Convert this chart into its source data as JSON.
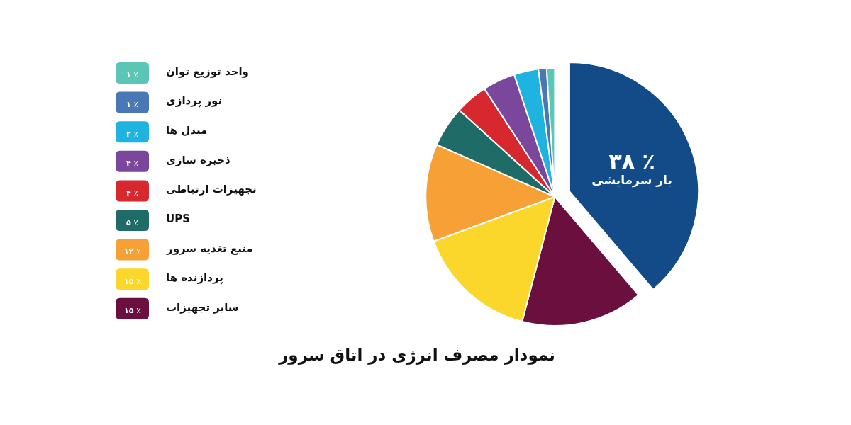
{
  "chart_data": {
    "type": "pie",
    "title": "نمودار مصرف انرژی در اتاق سرور",
    "categories": [
      "بار سرمایشی",
      "سایر تجهیزات",
      "پردازنده ها",
      "منبع تغذیه سرور",
      "UPS",
      "تجهیزات ارتباطی",
      "ذخیره سازی",
      "مبدل ها",
      "نور پردازی",
      "واحد توزیع توان"
    ],
    "values": [
      38,
      15,
      15,
      12,
      5,
      4,
      4,
      3,
      1,
      1
    ],
    "value_labels": [
      "۳۸ ٪",
      "۱۵ ٪",
      "۱۵ ٪",
      "۱۲ ٪",
      "۵ ٪",
      "۴ ٪",
      "۴ ٪",
      "۳ ٪",
      "۱ ٪",
      "۱ ٪"
    ],
    "colors": [
      "#124b87",
      "#6b0f3f",
      "#fcd72b",
      "#f7a035",
      "#1e6b68",
      "#d7282f",
      "#7a479c",
      "#1fb3e0",
      "#4a78b4",
      "#5cc6b6"
    ],
    "legend": "left"
  }
}
